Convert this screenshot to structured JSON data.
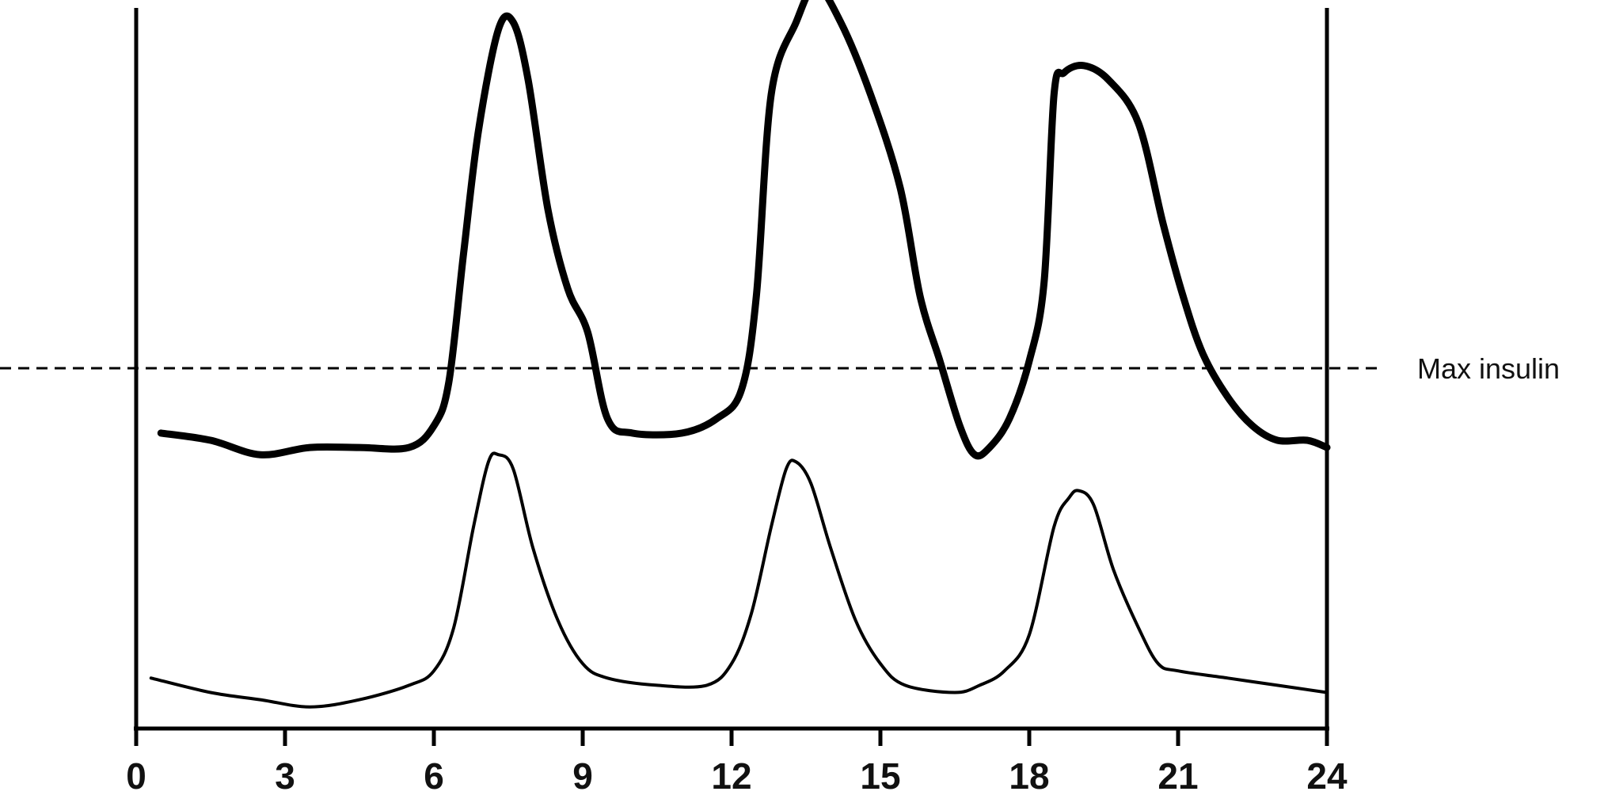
{
  "chart_data": {
    "type": "line",
    "title": "",
    "xlabel": "",
    "ylabel": "",
    "xlim": [
      0,
      24
    ],
    "ylim": [
      0,
      100
    ],
    "x_ticks": [
      0,
      3,
      6,
      9,
      12,
      15,
      18,
      21,
      24
    ],
    "x_tick_labels": [
      "0",
      "3",
      "6",
      "9",
      "12",
      "15",
      "18",
      "21",
      "24"
    ],
    "grid": false,
    "legend": "none",
    "reference_line": {
      "label": "Max insulin",
      "y": 50,
      "style": "dashed"
    },
    "series": [
      {
        "style": "thick",
        "color": "#000000",
        "x": [
          0.5,
          1.5,
          2.5,
          3.5,
          4.5,
          5.5,
          6.0,
          6.3,
          6.6,
          6.9,
          7.3,
          7.6,
          7.9,
          8.3,
          8.7,
          9.1,
          9.5,
          10.0,
          11.0,
          11.7,
          12.2,
          12.5,
          12.8,
          13.3,
          13.7,
          14.2,
          14.8,
          15.4,
          15.8,
          16.2,
          16.6,
          16.9,
          17.2,
          17.6,
          18.0,
          18.3,
          18.5,
          18.7,
          19.1,
          19.6,
          20.2,
          20.7,
          21.1,
          21.5,
          22.0,
          22.5,
          23.0,
          23.6,
          24.0
        ],
        "y": [
          41,
          40,
          38,
          39,
          39,
          39,
          42,
          48,
          66,
          83,
          97,
          98,
          90,
          72,
          61,
          55,
          43,
          41,
          41,
          43,
          47,
          60,
          88,
          98,
          103,
          98,
          88,
          75,
          60,
          51,
          42,
          38,
          39,
          43,
          51,
          62,
          88,
          91,
          92,
          90,
          84,
          70,
          60,
          52,
          46,
          42,
          40,
          40,
          39
        ]
      },
      {
        "style": "thin",
        "color": "#000000",
        "x": [
          0.3,
          1.5,
          2.5,
          3.5,
          4.5,
          5.5,
          6.0,
          6.4,
          6.8,
          7.1,
          7.3,
          7.6,
          8.0,
          8.5,
          9.0,
          9.5,
          10.5,
          11.5,
          12.0,
          12.4,
          12.8,
          13.1,
          13.3,
          13.6,
          14.0,
          14.5,
          15.0,
          15.5,
          16.5,
          17.0,
          17.5,
          18.0,
          18.5,
          18.8,
          19.0,
          19.3,
          19.7,
          20.2,
          20.6,
          21.0,
          22.0,
          23.0,
          24.0
        ],
        "y": [
          7,
          5,
          4,
          3,
          4,
          6,
          8,
          14,
          28,
          37,
          38,
          36,
          25,
          15,
          9,
          7,
          6,
          6,
          9,
          16,
          28,
          36,
          37,
          34,
          25,
          15,
          9,
          6,
          5,
          6,
          8,
          13,
          28,
          32,
          33,
          31,
          22,
          14,
          9,
          8,
          7,
          6,
          5
        ]
      }
    ]
  }
}
